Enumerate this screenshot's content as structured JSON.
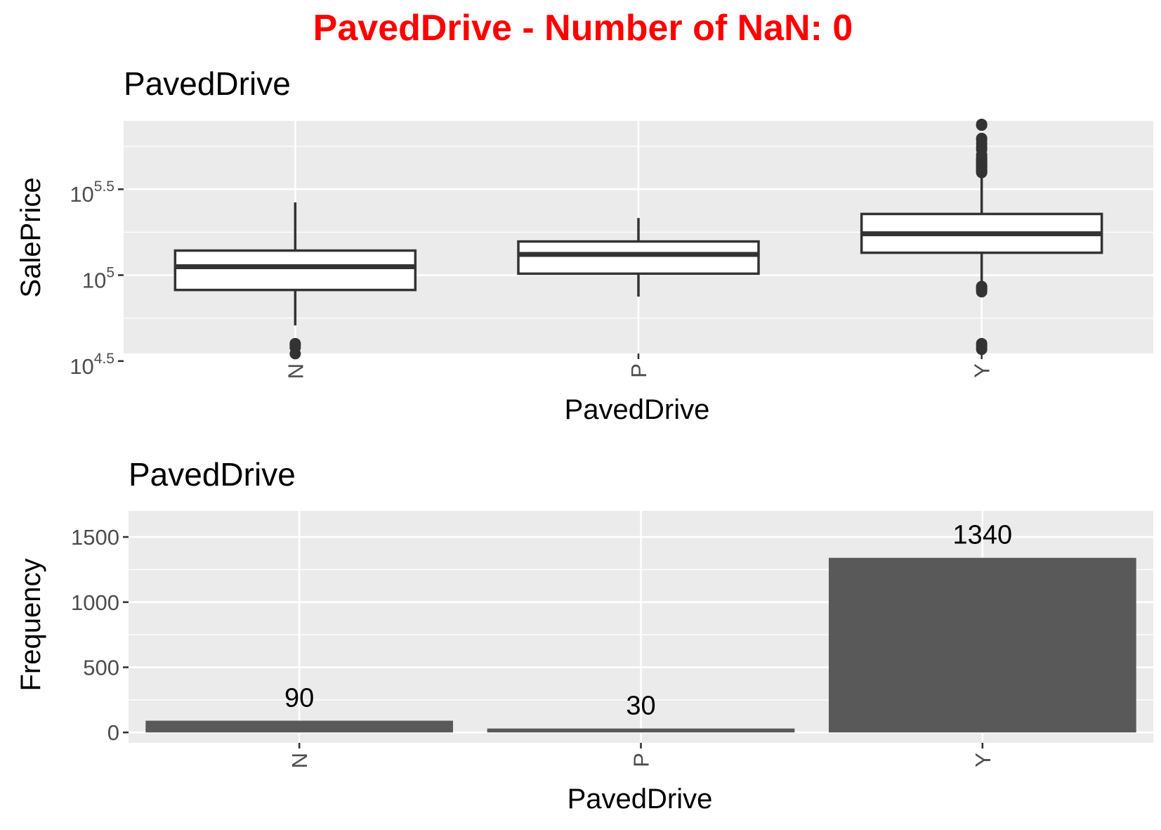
{
  "main_title": "PavedDrive - Number of NaN: 0",
  "chart_data": [
    {
      "type": "box",
      "title": "PavedDrive",
      "xlabel": "PavedDrive",
      "ylabel": "SalePrice",
      "y_scale": "log10",
      "ylim": [
        35000,
        790000
      ],
      "y_ticks": [
        {
          "base": "10",
          "exp": "4.5",
          "value": 31623
        },
        {
          "base": "10",
          "exp": "5",
          "value": 100000
        },
        {
          "base": "10",
          "exp": "5.5",
          "value": 316228
        }
      ],
      "y_minor_ticks": [
        56234,
        177828,
        562341
      ],
      "categories": [
        "N",
        "P",
        "Y"
      ],
      "boxes": [
        {
          "category": "N",
          "whisker_low": 51000,
          "q1": 82000,
          "median": 112000,
          "q3": 139000,
          "whisker_high": 265000,
          "outliers": [
            34900,
            37900,
            39300,
            40000
          ]
        },
        {
          "category": "P",
          "whisker_low": 75000,
          "q1": 102000,
          "median": 132000,
          "q3": 157000,
          "whisker_high": 215000,
          "outliers": []
        },
        {
          "category": "Y",
          "whisker_low": 90000,
          "q1": 135000,
          "median": 174000,
          "q3": 227000,
          "whisker_high": 392000,
          "outliers": [
            755000,
            745000,
            625000,
            611657,
            582933,
            556581,
            538000,
            501837,
            485000,
            475000,
            466500,
            465000,
            455000,
            451950,
            440000,
            438780,
            437154,
            430000,
            426000,
            423000,
            412500,
            410000,
            402861,
            402000,
            395000,
            86000,
            85000,
            84000,
            83000,
            82000,
            80000,
            40000,
            39000,
            38000,
            37000
          ]
        }
      ]
    },
    {
      "type": "bar",
      "title": "PavedDrive",
      "xlabel": "PavedDrive",
      "ylabel": "Frequency",
      "ylim": [
        -80,
        1700
      ],
      "y_ticks": [
        0,
        500,
        1000,
        1500
      ],
      "y_minor_ticks": [
        250,
        750,
        1250
      ],
      "categories": [
        "N",
        "P",
        "Y"
      ],
      "values": [
        90,
        30,
        1340
      ],
      "data_labels": [
        "90",
        "30",
        "1340"
      ]
    }
  ],
  "colors": {
    "title": "#ff0000",
    "panel": "#ebebeb",
    "bar": "#595959",
    "box_line": "#333333"
  }
}
